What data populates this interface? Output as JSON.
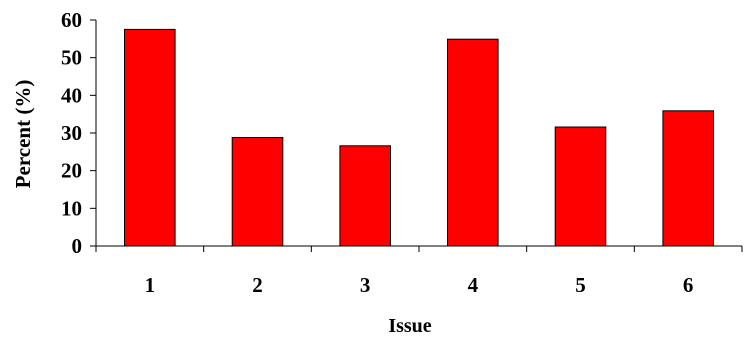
{
  "chart_data": {
    "type": "bar",
    "title": "",
    "xlabel": "Issue",
    "ylabel": "Percent (%)",
    "categories": [
      "1",
      "2",
      "3",
      "4",
      "5",
      "6"
    ],
    "values": [
      57.5,
      28.8,
      26.6,
      54.9,
      31.6,
      35.9
    ],
    "ylim": [
      0,
      60
    ],
    "yticks": [
      "0",
      "10",
      "20",
      "30",
      "40",
      "50",
      "60"
    ],
    "bar_color": "#ff0000",
    "grid": false,
    "legend": "none"
  }
}
